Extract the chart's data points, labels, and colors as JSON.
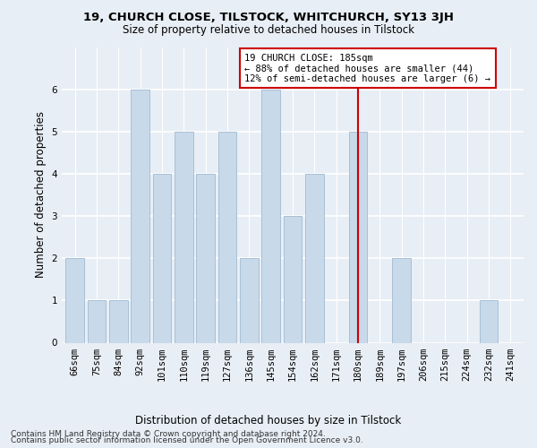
{
  "title": "19, CHURCH CLOSE, TILSTOCK, WHITCHURCH, SY13 3JH",
  "subtitle": "Size of property relative to detached houses in Tilstock",
  "xlabel": "Distribution of detached houses by size in Tilstock",
  "ylabel": "Number of detached properties",
  "categories": [
    "66sqm",
    "75sqm",
    "84sqm",
    "92sqm",
    "101sqm",
    "110sqm",
    "119sqm",
    "127sqm",
    "136sqm",
    "145sqm",
    "154sqm",
    "162sqm",
    "171sqm",
    "180sqm",
    "189sqm",
    "197sqm",
    "206sqm",
    "215sqm",
    "224sqm",
    "232sqm",
    "241sqm"
  ],
  "values": [
    2,
    1,
    1,
    6,
    4,
    5,
    4,
    5,
    2,
    6,
    3,
    4,
    0,
    5,
    0,
    2,
    0,
    0,
    0,
    1,
    0
  ],
  "bar_color": "#c8d9ea",
  "bar_edgecolor": "#a8c0d6",
  "reference_line_index": 13,
  "reference_line_color": "#cc0000",
  "annotation_text": "19 CHURCH CLOSE: 185sqm\n← 88% of detached houses are smaller (44)\n12% of semi-detached houses are larger (6) →",
  "annotation_box_facecolor": "#ffffff",
  "annotation_box_edgecolor": "#cc0000",
  "ylim": [
    0,
    7
  ],
  "yticks": [
    0,
    1,
    2,
    3,
    4,
    5,
    6
  ],
  "footer1": "Contains HM Land Registry data © Crown copyright and database right 2024.",
  "footer2": "Contains public sector information licensed under the Open Government Licence v3.0.",
  "background_color": "#e8eef5",
  "plot_background_color": "#e8eef5",
  "title_fontsize": 9.5,
  "subtitle_fontsize": 8.5,
  "ylabel_fontsize": 8.5,
  "xlabel_fontsize": 8.5,
  "tick_fontsize": 7.5,
  "annotation_fontsize": 7.5,
  "footer_fontsize": 6.5
}
